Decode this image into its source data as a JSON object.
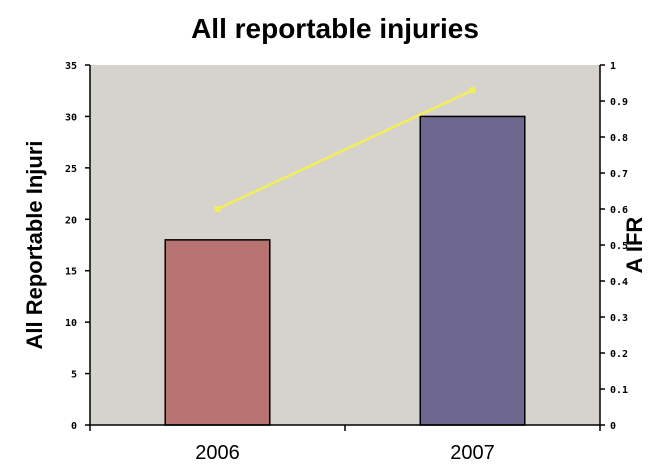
{
  "chart_data": {
    "title": "All reportable injuries",
    "categories": [
      "2006",
      "2007"
    ],
    "bar_series": {
      "values": [
        18,
        30
      ],
      "colors": [
        "#b87373",
        "#6e6890"
      ],
      "axis": "left"
    },
    "line_series": {
      "values": [
        0.6,
        0.93
      ],
      "color": "#f2ee58",
      "axis": "right"
    },
    "y_left": {
      "label": "All Reportable Injuri",
      "ylim": [
        0,
        35
      ],
      "ticks": [
        0,
        5,
        10,
        15,
        20,
        25,
        30,
        35
      ]
    },
    "y_right": {
      "label": "A IFR",
      "ylim": [
        0,
        1
      ],
      "ticks": [
        0,
        0.1,
        0.2,
        0.3,
        0.4,
        0.5,
        0.6,
        0.7,
        0.8,
        0.9,
        1
      ],
      "tick_labels": [
        "0",
        "0.1",
        "0.2",
        "0.3",
        "0.4",
        "0.5",
        "0.6",
        "0.7",
        "0.8",
        "0.9",
        "1"
      ]
    },
    "plot_background": "#d6d3cf",
    "grid": false,
    "legend": "none"
  }
}
